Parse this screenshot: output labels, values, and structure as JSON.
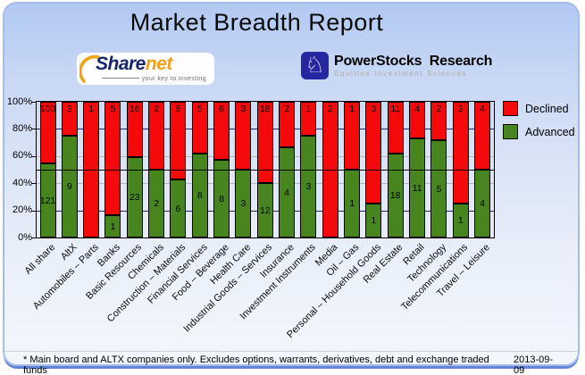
{
  "title": "Market Breadth Report",
  "logos": {
    "sharenet": {
      "part1": "Share",
      "part2": "net",
      "tagline": "your key to investing"
    },
    "powerstocks": {
      "line1": "PowerStocks  Research",
      "tagline": "Equities Investment Sciences",
      "icon": "chess-knight"
    }
  },
  "chart_data": {
    "type": "bar",
    "stacked": true,
    "unit": "percent_of_total",
    "categories": [
      "All share",
      "AltX",
      "Automobiles – Parts",
      "Banks",
      "Basic Resources",
      "Chemicals",
      "Construction – Materials",
      "Financial Services",
      "Food – Beverage",
      "Health Care",
      "Industrial Goods – Services",
      "Insurance",
      "Investment Instruments",
      "Media",
      "Oil – Gas",
      "Personal – Household Goods",
      "Real Estate",
      "Retail",
      "Technology",
      "Telecommunications",
      "Travel – Leisure"
    ],
    "series": [
      {
        "name": "Declined",
        "color": "#f40a0a",
        "values": [
          100,
          3,
          1,
          5,
          16,
          2,
          8,
          5,
          6,
          3,
          18,
          2,
          1,
          2,
          1,
          3,
          11,
          4,
          2,
          3,
          4
        ]
      },
      {
        "name": "Advanced",
        "color": "#47851e",
        "values": [
          121,
          9,
          0,
          1,
          23,
          2,
          6,
          8,
          8,
          3,
          12,
          4,
          3,
          0,
          1,
          1,
          18,
          11,
          5,
          1,
          4
        ]
      }
    ],
    "ylim": [
      0,
      100
    ],
    "yticks": [
      {
        "pct": 0,
        "label": "0%"
      },
      {
        "pct": 20,
        "label": "20%"
      },
      {
        "pct": 40,
        "label": "40%"
      },
      {
        "pct": 60,
        "label": "60%"
      },
      {
        "pct": 80,
        "label": "80%"
      },
      {
        "pct": 100,
        "label": "100%"
      }
    ],
    "gridlines": [
      {
        "pct": 80,
        "color": "#23237d"
      },
      {
        "pct": 60,
        "color": "#b4b4b4"
      },
      {
        "pct": 50,
        "color": "#000000"
      },
      {
        "pct": 40,
        "color": "#b4b4b4"
      },
      {
        "pct": 20,
        "color": "#23237d"
      }
    ],
    "legend": [
      {
        "label": "Declined",
        "color": "#f40a0a"
      },
      {
        "label": "Advanced",
        "color": "#47851e"
      }
    ],
    "legend_position": "top-right"
  },
  "footer": {
    "note": "* Main board and ALTX companies only. Excludes options, warrants, derivatives, debt and exchange traded funds",
    "date": "2013-09-09"
  }
}
